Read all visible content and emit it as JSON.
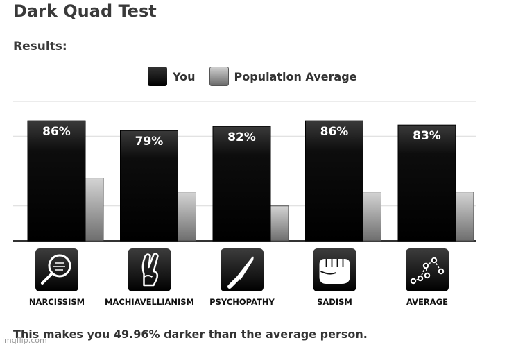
{
  "page": {
    "title": "Dark Quad Test",
    "results_label": "Results:",
    "summary": "This makes you 49.96% darker than the average person.",
    "watermark": "imgflip.com"
  },
  "legend": {
    "you": "You",
    "population": "Population Average"
  },
  "chart_data": {
    "type": "bar",
    "categories": [
      "NARCISSISM",
      "MACHIAVELLIANISM",
      "PSYCHOPATHY",
      "SADISM",
      "AVERAGE"
    ],
    "icons": [
      "mirror-icon",
      "crossed-fingers-icon",
      "knife-icon",
      "fist-icon",
      "constellation-icon"
    ],
    "series": [
      {
        "name": "You",
        "values": [
          86,
          79,
          82,
          86,
          83
        ],
        "labels": [
          "86%",
          "79%",
          "82%",
          "86%",
          "83%"
        ]
      },
      {
        "name": "Population Average",
        "values": [
          45,
          35,
          25,
          35,
          35
        ]
      }
    ],
    "ylim": [
      0,
      100
    ],
    "grid": true,
    "legend_position": "top-center",
    "colors": {
      "you": "#000000",
      "population": "#9a9a9a",
      "grid": "#d9d9d9",
      "axis": "#333333",
      "icon_bg": "#111111"
    }
  }
}
